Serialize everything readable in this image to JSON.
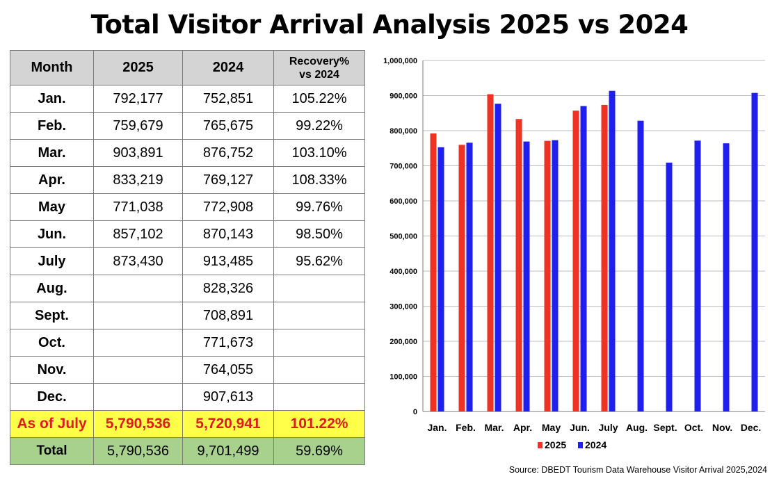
{
  "title": "Total Visitor Arrival Analysis 2025 vs 2024",
  "table": {
    "headers": [
      "Month",
      "2025",
      "2024",
      "Recovery%",
      "vs 2024"
    ],
    "rows": [
      {
        "month": "Jan.",
        "y2025": "792,177",
        "y2024": "752,851",
        "recovery": "105.22%"
      },
      {
        "month": "Feb.",
        "y2025": "759,679",
        "y2024": "765,675",
        "recovery": "99.22%"
      },
      {
        "month": "Mar.",
        "y2025": "903,891",
        "y2024": "876,752",
        "recovery": "103.10%"
      },
      {
        "month": "Apr.",
        "y2025": "833,219",
        "y2024": "769,127",
        "recovery": "108.33%"
      },
      {
        "month": "May",
        "y2025": "771,038",
        "y2024": "772,908",
        "recovery": "99.76%"
      },
      {
        "month": "Jun.",
        "y2025": "857,102",
        "y2024": "870,143",
        "recovery": "98.50%"
      },
      {
        "month": "July",
        "y2025": "873,430",
        "y2024": "913,485",
        "recovery": "95.62%"
      },
      {
        "month": "Aug.",
        "y2025": "",
        "y2024": "828,326",
        "recovery": ""
      },
      {
        "month": "Sept.",
        "y2025": "",
        "y2024": "708,891",
        "recovery": ""
      },
      {
        "month": "Oct.",
        "y2025": "",
        "y2024": "771,673",
        "recovery": ""
      },
      {
        "month": "Nov.",
        "y2025": "",
        "y2024": "764,055",
        "recovery": ""
      },
      {
        "month": "Dec.",
        "y2025": "",
        "y2024": "907,613",
        "recovery": ""
      }
    ],
    "as_of": {
      "label": "As of July",
      "y2025": "5,790,536",
      "y2024": "5,720,941",
      "recovery": "101.22%"
    },
    "total": {
      "label": "Total",
      "y2025": "5,790,536",
      "y2024": "9,701,499",
      "recovery": "59.69%"
    }
  },
  "chart_data": {
    "type": "bar",
    "categories": [
      "Jan.",
      "Feb.",
      "Mar.",
      "Apr.",
      "May",
      "Jun.",
      "July",
      "Aug.",
      "Sept.",
      "Oct.",
      "Nov.",
      "Dec."
    ],
    "series": [
      {
        "name": "2025",
        "color": "#ee3324",
        "values": [
          792177,
          759679,
          903891,
          833219,
          771038,
          857102,
          873430,
          null,
          null,
          null,
          null,
          null
        ]
      },
      {
        "name": "2024",
        "color": "#1f1ff0",
        "values": [
          752851,
          765675,
          876752,
          769127,
          772908,
          870143,
          913485,
          828326,
          708891,
          771673,
          764055,
          907613
        ]
      }
    ],
    "ylim": [
      0,
      1000000
    ],
    "yticks": [
      "0",
      "100,000",
      "200,000",
      "300,000",
      "400,000",
      "500,000",
      "600,000",
      "700,000",
      "800,000",
      "900,000",
      "1,000,000"
    ],
    "grid": "horizontal",
    "legend_position": "bottom",
    "xlabel": "",
    "ylabel": ""
  },
  "source": "Source: DBEDT Tourism Data Warehouse Visitor Arrival 2025,2024"
}
